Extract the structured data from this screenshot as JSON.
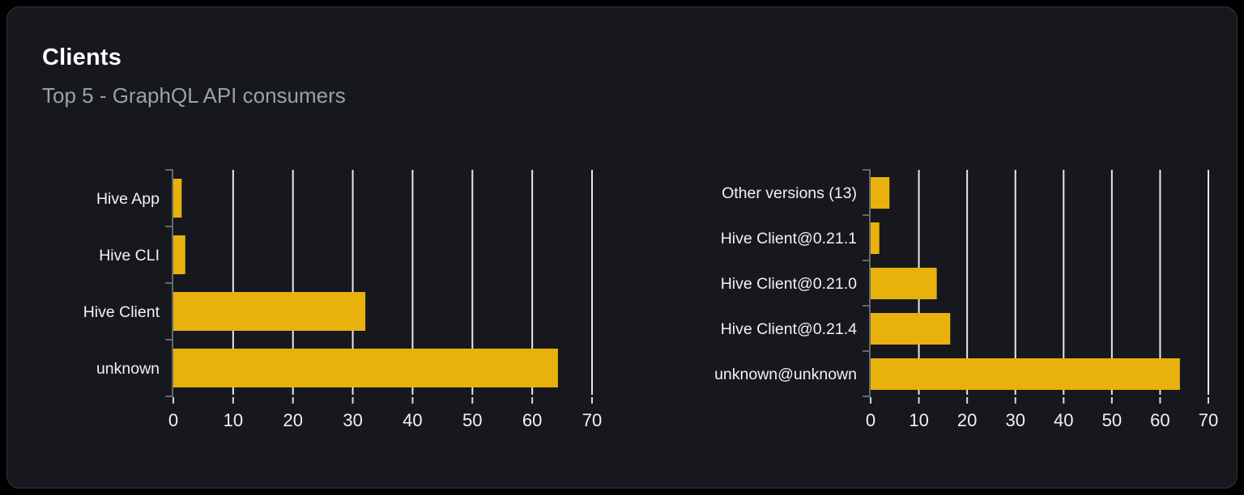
{
  "card": {
    "title": "Clients",
    "subtitle": "Top 5 - GraphQL API consumers"
  },
  "colors": {
    "page_bg": "#000000",
    "card_bg": "#16181d",
    "card_border": "#2f333a",
    "title": "#ffffff",
    "subtitle": "#9aa1ab",
    "bar": "#e9b10c",
    "grid": "#e5e8ed",
    "axis": "#63676f",
    "tick_mark": "#d4d8dd",
    "category_label": "#f1f2f4",
    "tick_label": "#f1f2f4"
  },
  "chart_data": [
    {
      "type": "bar",
      "orientation": "horizontal",
      "title": "",
      "categories": [
        "Hive App",
        "Hive CLI",
        "Hive Client",
        "unknown"
      ],
      "values": [
        1.4,
        2.0,
        32.1,
        64.3
      ],
      "x_ticks": [
        0,
        10,
        20,
        30,
        40,
        50,
        60,
        70
      ],
      "xlim": [
        0,
        70
      ],
      "grid": true,
      "legend": false
    },
    {
      "type": "bar",
      "orientation": "horizontal",
      "title": "",
      "categories": [
        "Other versions (13)",
        "Hive Client@0.21.1",
        "Hive Client@0.21.0",
        "Hive Client@0.21.4",
        "unknown@unknown"
      ],
      "values": [
        3.9,
        1.8,
        13.7,
        16.5,
        64.1
      ],
      "x_ticks": [
        0,
        10,
        20,
        30,
        40,
        50,
        60,
        70
      ],
      "xlim": [
        0,
        70
      ],
      "grid": true,
      "legend": false
    }
  ]
}
